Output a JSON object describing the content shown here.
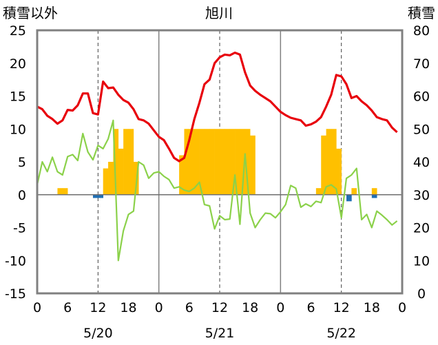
{
  "chart_data": {
    "type": "bar+line",
    "title": "旭川",
    "left_axis_label": "積雪以外",
    "right_axis_label": "積雪",
    "ylim_left": [
      -15,
      25
    ],
    "ylim_right": [
      0,
      80
    ],
    "y_ticks_left": [
      "25",
      "20",
      "15",
      "10",
      "5",
      "0",
      "-5",
      "-10",
      "-15"
    ],
    "y_ticks_right": [
      "80",
      "70",
      "60",
      "50",
      "40",
      "30",
      "20",
      "10",
      "0"
    ],
    "x_range_hours": [
      0,
      72
    ],
    "x_tick_labels": [
      "0",
      "6",
      "12",
      "18",
      "0",
      "6",
      "12",
      "18",
      "0",
      "6",
      "12",
      "18",
      "0"
    ],
    "date_labels": [
      "5/20",
      "5/21",
      "5/22"
    ],
    "grid": "dashed vertical lines at 12h, day dividers at 0h",
    "colors": {
      "temperature": "#e8000b",
      "snow_depth": "#8bd14a",
      "precipitation": "#ffc000",
      "negative_bar": "#1f6fb5",
      "frame": "#808080"
    },
    "precipitation_bars": [
      {
        "x": 4.5,
        "value": 1
      },
      {
        "x": 5.5,
        "value": 1
      },
      {
        "x": 11.5,
        "value": -0.5
      },
      {
        "x": 12.5,
        "value": -0.5
      },
      {
        "x": 13.5,
        "value": 4
      },
      {
        "x": 14.5,
        "value": 5
      },
      {
        "x": 15.5,
        "value": 10
      },
      {
        "x": 16.5,
        "value": 7
      },
      {
        "x": 17.5,
        "value": 10
      },
      {
        "x": 18.5,
        "value": 10
      },
      {
        "x": 19.5,
        "value": 5
      },
      {
        "x": 28.5,
        "value": 6
      },
      {
        "x": 29.5,
        "value": 10
      },
      {
        "x": 30.5,
        "value": 10
      },
      {
        "x": 31.5,
        "value": 10
      },
      {
        "x": 32.5,
        "value": 10
      },
      {
        "x": 33.5,
        "value": 10
      },
      {
        "x": 34.5,
        "value": 10
      },
      {
        "x": 35.5,
        "value": 10
      },
      {
        "x": 36.5,
        "value": 10
      },
      {
        "x": 37.5,
        "value": 10
      },
      {
        "x": 38.5,
        "value": 10
      },
      {
        "x": 39.5,
        "value": 10
      },
      {
        "x": 40.5,
        "value": 10
      },
      {
        "x": 41.5,
        "value": 10
      },
      {
        "x": 42.5,
        "value": 9
      },
      {
        "x": 55.5,
        "value": 1
      },
      {
        "x": 56.5,
        "value": 9
      },
      {
        "x": 57.5,
        "value": 10
      },
      {
        "x": 58.5,
        "value": 10
      },
      {
        "x": 59.5,
        "value": 7
      },
      {
        "x": 61.5,
        "value": -1
      },
      {
        "x": 62.5,
        "value": 1
      },
      {
        "x": 66.5,
        "value": 1
      },
      {
        "x": 66.5,
        "value": -0.5
      }
    ],
    "temperature_series": {
      "x": [
        0,
        1,
        2,
        3,
        4,
        5,
        6,
        7,
        8,
        9,
        10,
        11,
        12,
        13,
        14,
        15,
        16,
        17,
        18,
        19,
        20,
        21,
        22,
        23,
        24,
        25,
        26,
        27,
        28,
        29,
        30,
        31,
        32,
        33,
        34,
        35,
        36,
        37,
        38,
        39,
        40,
        41,
        42,
        43,
        44,
        45,
        46,
        47,
        48,
        49,
        50,
        51,
        52,
        53,
        54,
        55,
        56,
        57,
        58,
        59,
        60,
        61,
        62,
        63,
        64,
        65,
        66,
        67,
        68,
        69,
        70,
        71
      ],
      "values": [
        13.4,
        13,
        12,
        11.5,
        10.8,
        11.3,
        12.9,
        12.8,
        13.6,
        15.4,
        15.4,
        12.4,
        12.2,
        17.2,
        16.2,
        16.3,
        15.2,
        14.4,
        14,
        13,
        11.5,
        11.3,
        10.8,
        9.8,
        8.8,
        8.3,
        7,
        5.6,
        5.1,
        5.6,
        8.3,
        11.5,
        14,
        16.8,
        17.5,
        20,
        20.9,
        21.3,
        21.2,
        21.6,
        21.3,
        18.6,
        16.6,
        15.8,
        15.2,
        14.7,
        14.2,
        13.4,
        12.6,
        12.1,
        11.7,
        11.5,
        11.3,
        10.5,
        10.7,
        11.1,
        11.8,
        13.4,
        15.2,
        18.2,
        18,
        16.8,
        14.7,
        15,
        14.2,
        13.6,
        12.8,
        11.8,
        11.5,
        11.3,
        10.2,
        9.5
      ]
    },
    "snow_depth_series": {
      "x": [
        0,
        1,
        2,
        3,
        4,
        5,
        6,
        7,
        8,
        9,
        10,
        11,
        12,
        13,
        14,
        15,
        16,
        17,
        18,
        19,
        20,
        21,
        22,
        23,
        24,
        25,
        26,
        27,
        28,
        29,
        30,
        31,
        32,
        33,
        34,
        35,
        36,
        37,
        38,
        39,
        40,
        41,
        42,
        43,
        44,
        45,
        46,
        47,
        48,
        49,
        50,
        51,
        52,
        53,
        54,
        55,
        56,
        57,
        58,
        59,
        60,
        61,
        62,
        63,
        64,
        65,
        66,
        67,
        68,
        69,
        70,
        71
      ],
      "values": [
        1.5,
        5,
        3.5,
        5.7,
        3.5,
        3,
        5.8,
        6.1,
        5.2,
        9.3,
        6.5,
        5.3,
        7.5,
        7,
        8.5,
        11.3,
        -10,
        -5.5,
        -3,
        -2.5,
        5,
        4.5,
        2.5,
        3.3,
        3.5,
        2.8,
        2.3,
        1,
        1.2,
        0.7,
        0.5,
        1,
        1.9,
        -1.5,
        -1.7,
        -5.2,
        -3.2,
        -3.8,
        -3.7,
        3,
        -4.5,
        6.2,
        -2.8,
        -5,
        -3.8,
        -2.8,
        -2.9,
        -3.5,
        -2.6,
        -1.5,
        1.4,
        1,
        -1.9,
        -1.4,
        -1.8,
        -1,
        -1.2,
        1.2,
        1.5,
        0.9,
        -3.5,
        2.5,
        3,
        4,
        -3.8,
        -3,
        -5,
        -2.5,
        -3.1,
        -3.8,
        -4.6,
        -4
      ]
    }
  }
}
